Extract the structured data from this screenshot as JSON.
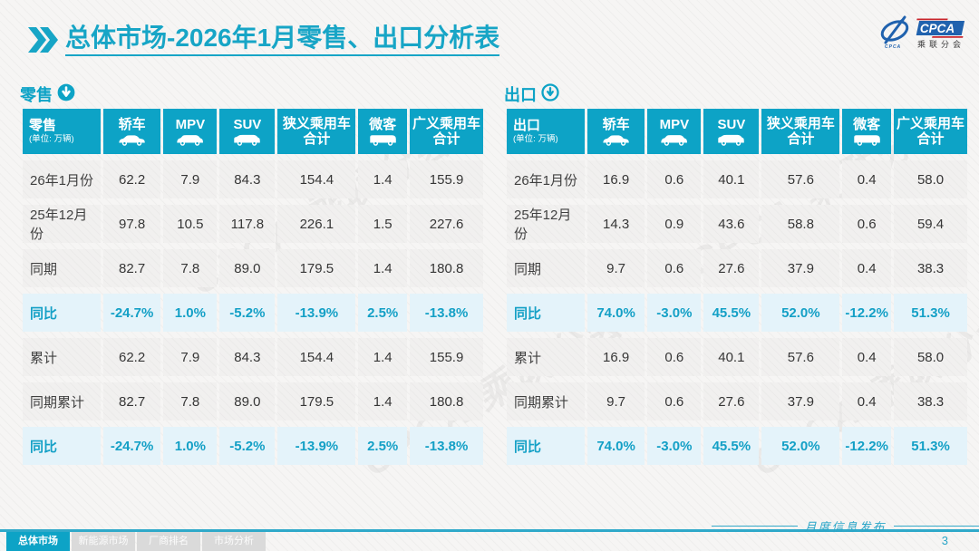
{
  "title": {
    "bold": "总体市场",
    "rest": "-2026年1月零售、出口分析表"
  },
  "logo": {
    "cpca": "CPCA",
    "cn": "乘联分会"
  },
  "watermark": "CPCA 乘联分会",
  "colors": {
    "accent": "#0da3c6",
    "highlight_bg": "#e4f3fa",
    "title_cyan": "#17a5c6"
  },
  "tables": [
    {
      "caption": "零售",
      "arrow": "filled",
      "unit_name": "零售",
      "unit": "(单位: 万辆)",
      "columns": [
        {
          "label": "轿车",
          "icon": "sedan-icon"
        },
        {
          "label": "MPV",
          "icon": "mpv-icon"
        },
        {
          "label": "SUV",
          "icon": "suv-icon"
        },
        {
          "label": "狭义乘用车",
          "label2": "合计"
        },
        {
          "label": "微客",
          "icon": "minibus-icon"
        },
        {
          "label": "广义乘用车",
          "label2": "合计"
        }
      ],
      "rows": [
        {
          "label": "26年1月份",
          "highlight": false,
          "values": [
            "62.2",
            "7.9",
            "84.3",
            "154.4",
            "1.4",
            "155.9"
          ]
        },
        {
          "label": "25年12月份",
          "highlight": false,
          "values": [
            "97.8",
            "10.5",
            "117.8",
            "226.1",
            "1.5",
            "227.6"
          ]
        },
        {
          "label": "同期",
          "highlight": false,
          "values": [
            "82.7",
            "7.8",
            "89.0",
            "179.5",
            "1.4",
            "180.8"
          ]
        },
        {
          "label": "同比",
          "highlight": true,
          "values": [
            "-24.7%",
            "1.0%",
            "-5.2%",
            "-13.9%",
            "2.5%",
            "-13.8%"
          ]
        },
        {
          "label": "累计",
          "highlight": false,
          "values": [
            "62.2",
            "7.9",
            "84.3",
            "154.4",
            "1.4",
            "155.9"
          ]
        },
        {
          "label": "同期累计",
          "highlight": false,
          "values": [
            "82.7",
            "7.8",
            "89.0",
            "179.5",
            "1.4",
            "180.8"
          ]
        },
        {
          "label": "同比",
          "highlight": true,
          "values": [
            "-24.7%",
            "1.0%",
            "-5.2%",
            "-13.9%",
            "2.5%",
            "-13.8%"
          ]
        }
      ]
    },
    {
      "caption": "出口",
      "arrow": "ring",
      "unit_name": "出口",
      "unit": "(单位: 万辆)",
      "columns": [
        {
          "label": "轿车",
          "icon": "sedan-icon"
        },
        {
          "label": "MPV",
          "icon": "mpv-icon"
        },
        {
          "label": "SUV",
          "icon": "suv-icon"
        },
        {
          "label": "狭义乘用车",
          "label2": "合计"
        },
        {
          "label": "微客",
          "icon": "minibus-icon"
        },
        {
          "label": "广义乘用车",
          "label2": "合计"
        }
      ],
      "rows": [
        {
          "label": "26年1月份",
          "highlight": false,
          "values": [
            "16.9",
            "0.6",
            "40.1",
            "57.6",
            "0.4",
            "58.0"
          ]
        },
        {
          "label": "25年12月份",
          "highlight": false,
          "values": [
            "14.3",
            "0.9",
            "43.6",
            "58.8",
            "0.6",
            "59.4"
          ]
        },
        {
          "label": "同期",
          "highlight": false,
          "values": [
            "9.7",
            "0.6",
            "27.6",
            "37.9",
            "0.4",
            "38.3"
          ]
        },
        {
          "label": "同比",
          "highlight": true,
          "values": [
            "74.0%",
            "-3.0%",
            "45.5%",
            "52.0%",
            "-12.2%",
            "51.3%"
          ]
        },
        {
          "label": "累计",
          "highlight": false,
          "values": [
            "16.9",
            "0.6",
            "40.1",
            "57.6",
            "0.4",
            "58.0"
          ]
        },
        {
          "label": "同期累计",
          "highlight": false,
          "values": [
            "9.7",
            "0.6",
            "27.6",
            "37.9",
            "0.4",
            "38.3"
          ]
        },
        {
          "label": "同比",
          "highlight": true,
          "values": [
            "74.0%",
            "-3.0%",
            "45.5%",
            "52.0%",
            "-12.2%",
            "51.3%"
          ]
        }
      ]
    }
  ],
  "footer": {
    "tabs": [
      {
        "label": "总体市场",
        "active": true
      },
      {
        "label": "新能源市场",
        "active": false
      },
      {
        "label": "厂商排名",
        "active": false
      },
      {
        "label": "市场分析",
        "active": false
      }
    ],
    "publication": "月度信息发布",
    "page": "3"
  }
}
